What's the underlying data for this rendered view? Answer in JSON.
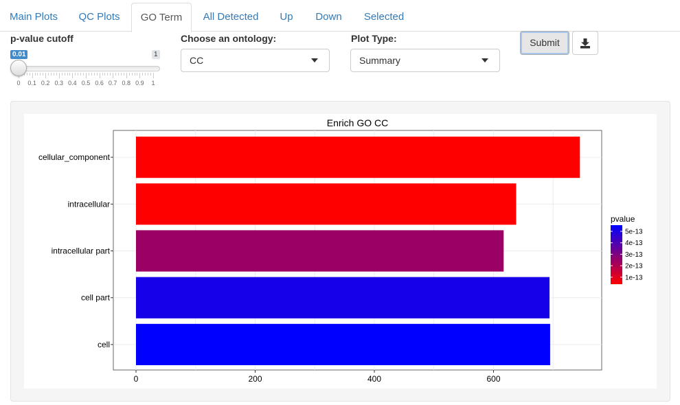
{
  "tabs": [
    {
      "label": "Main Plots",
      "active": false
    },
    {
      "label": "QC Plots",
      "active": false
    },
    {
      "label": "GO Term",
      "active": true
    },
    {
      "label": "All Detected",
      "active": false
    },
    {
      "label": "Up",
      "active": false
    },
    {
      "label": "Down",
      "active": false
    },
    {
      "label": "Selected",
      "active": false
    }
  ],
  "pvalue": {
    "label": "p-value cutoff",
    "value": "0.01",
    "max_label": "1",
    "ticks": [
      "0",
      "0.1",
      "0.2",
      "0.3",
      "0.4",
      "0.5",
      "0.6",
      "0.7",
      "0.8",
      "0.9",
      "1"
    ]
  },
  "ontology": {
    "label": "Choose an ontology:",
    "value": "CC"
  },
  "plot_type": {
    "label": "Plot Type:",
    "value": "Summary"
  },
  "submit_label": "Submit",
  "icons": {
    "download": "download-icon"
  },
  "chart_data": {
    "type": "bar",
    "orientation": "horizontal",
    "title": "Enrich GO CC",
    "categories": [
      "cellular_component",
      "intracellular",
      "intracellular part",
      "cell part",
      "cell"
    ],
    "values": [
      745,
      638,
      617,
      694,
      695
    ],
    "pvalues": [
      1e-13,
      1e-13,
      2.8e-13,
      5.2e-13,
      5.6e-13
    ],
    "xlim": [
      0,
      780
    ],
    "xticks": [
      "0",
      "200",
      "400",
      "600"
    ],
    "legend": {
      "title": "pvalue",
      "labels": [
        "5e-13",
        "4e-13",
        "3e-13",
        "2e-13",
        "1e-13"
      ],
      "low_color": "#ff0000",
      "high_color": "#0000ff",
      "position": "right"
    }
  }
}
